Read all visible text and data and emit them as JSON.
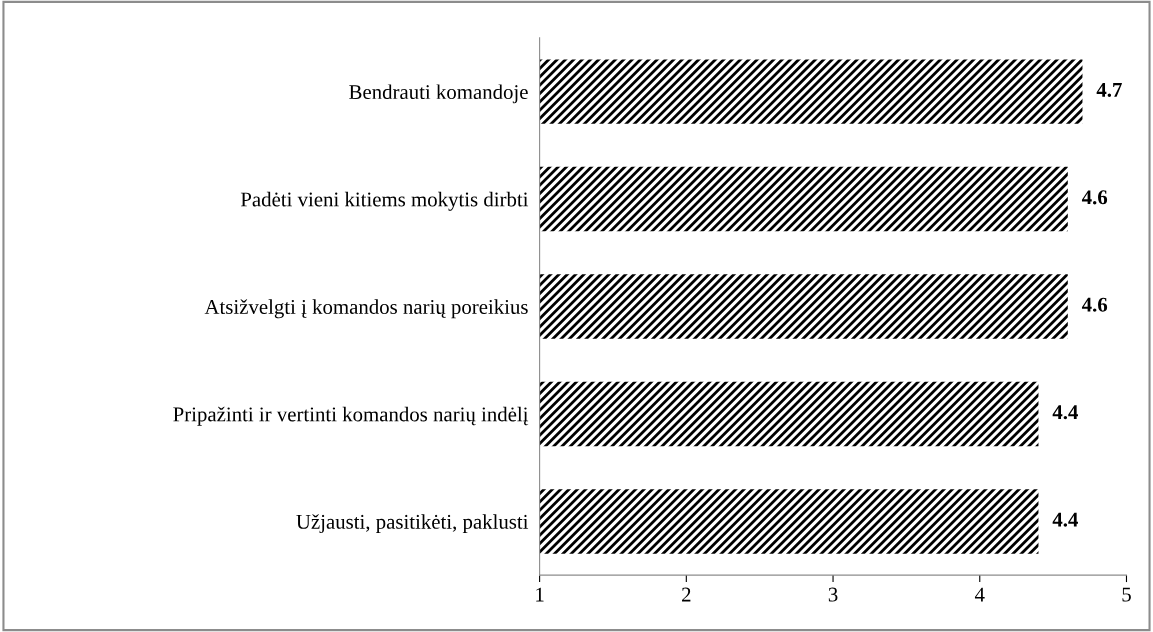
{
  "chart_data": {
    "type": "bar",
    "orientation": "horizontal",
    "categories": [
      "Bendrauti komandoje",
      "Padėti vieni kitiems mokytis dirbti",
      "Atsižvelgti į komandos narių poreikius",
      "Pripažinti ir vertinti komandos narių indėlį",
      "Užjausti, pasitikėti, paklusti"
    ],
    "values": [
      4.7,
      4.6,
      4.6,
      4.4,
      4.4
    ],
    "color": "#000000",
    "xlim": [
      1,
      5
    ],
    "xticks": [
      1,
      2,
      3,
      4,
      5
    ],
    "data_labels": true,
    "grid": false,
    "legend": false
  }
}
